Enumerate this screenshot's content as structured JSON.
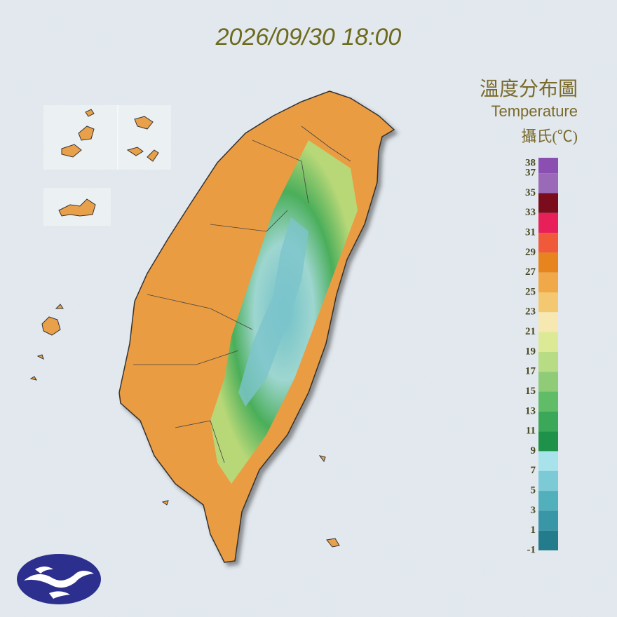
{
  "header": {
    "datetime": "2026/09/30 18:00"
  },
  "legend": {
    "title": "溫度分布圖",
    "subtitle": "Temperature",
    "unit": "攝氏(℃)",
    "ticks": [
      38,
      37,
      35,
      33,
      31,
      29,
      27,
      25,
      23,
      21,
      19,
      17,
      15,
      13,
      11,
      9,
      7,
      5,
      3,
      1,
      -1
    ],
    "colors": [
      "#8a4fb0",
      "#9a6ab8",
      "#7a0c1c",
      "#e8205a",
      "#f05a3a",
      "#e8841e",
      "#f0a848",
      "#f4c870",
      "#f6e8b0",
      "#dcea96",
      "#b8dc84",
      "#90cc78",
      "#60bc66",
      "#3aa858",
      "#1e9248",
      "#a8e2ea",
      "#7ccad6",
      "#52b0bc",
      "#3896a6",
      "#237c8c"
    ]
  }
}
